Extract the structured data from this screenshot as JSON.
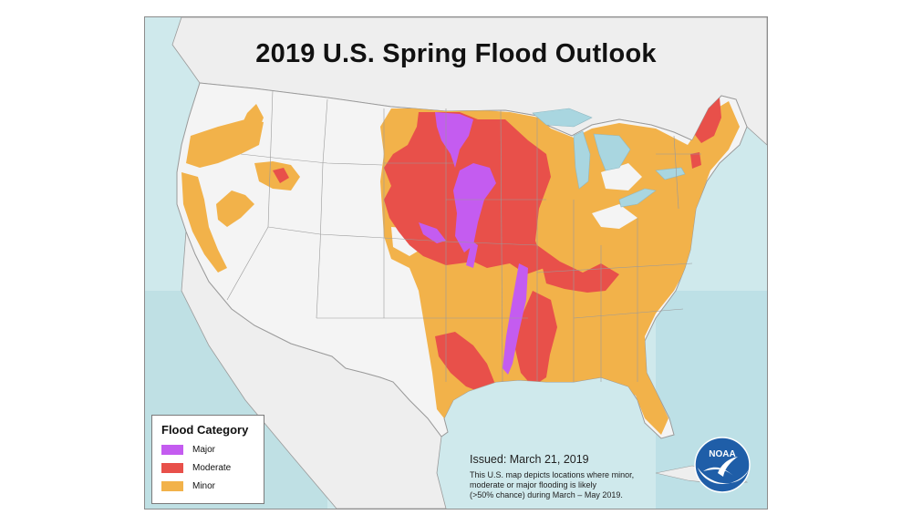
{
  "title": "2019 U.S. Spring Flood Outlook",
  "legend": {
    "title": "Flood Category",
    "items": [
      {
        "label": "Major",
        "color": "#c45cf0"
      },
      {
        "label": "Moderate",
        "color": "#e8504a"
      },
      {
        "label": "Minor",
        "color": "#f2b24a"
      }
    ]
  },
  "issued": "Issued:  March 21, 2019",
  "note_lines": [
    "This U.S. map depicts locations where minor,",
    "moderate or major flooding is likely",
    "(>50% chance) during March – May  2019."
  ],
  "logo": {
    "text": "NOAA",
    "icon": "noaa-logo-icon"
  },
  "colors": {
    "ocean": "#cfe9ec",
    "land": "#f4f4f4",
    "border": "#9a9a9a"
  }
}
